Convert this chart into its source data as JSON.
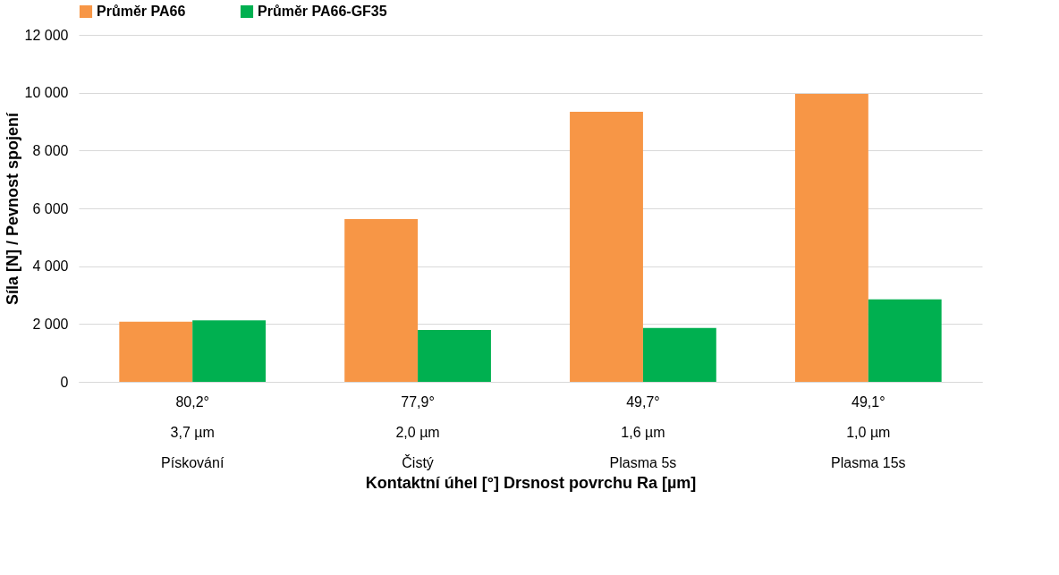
{
  "chart_data": {
    "type": "bar",
    "ylabel": "Síla [N] / Pevnost spojení",
    "xlabel": "Kontaktní úhel [°]        Drsnost povrchu Ra [µm]",
    "categories": [
      "80,2°\n3,7 µm\nPískování",
      "77,9°\n2,0 µm\nČistý",
      "49,7°\n1,6 µm\nPlasma 5s",
      "49,1°\n1,0 µm\nPlasma 15s"
    ],
    "series": [
      {
        "name": "Průměr PA66",
        "color": "#f79646",
        "values": [
          2080,
          5630,
          9340,
          9960
        ]
      },
      {
        "name": "Průměr PA66-GF35",
        "color": "#00b050",
        "values": [
          2130,
          1790,
          1860,
          2850
        ]
      }
    ],
    "ylim": [
      0,
      12000
    ],
    "yticks": [
      0,
      {
        "value": 2000,
        "label": "2 000"
      },
      {
        "value": 4000,
        "label": "4 000"
      },
      {
        "value": 6000,
        "label": "6 000"
      },
      {
        "value": 8000,
        "label": "8 000"
      },
      {
        "value": 10000,
        "label": "10 000"
      },
      {
        "value": 12000,
        "label": "12 000"
      }
    ],
    "grid": "y",
    "legend": "top"
  }
}
